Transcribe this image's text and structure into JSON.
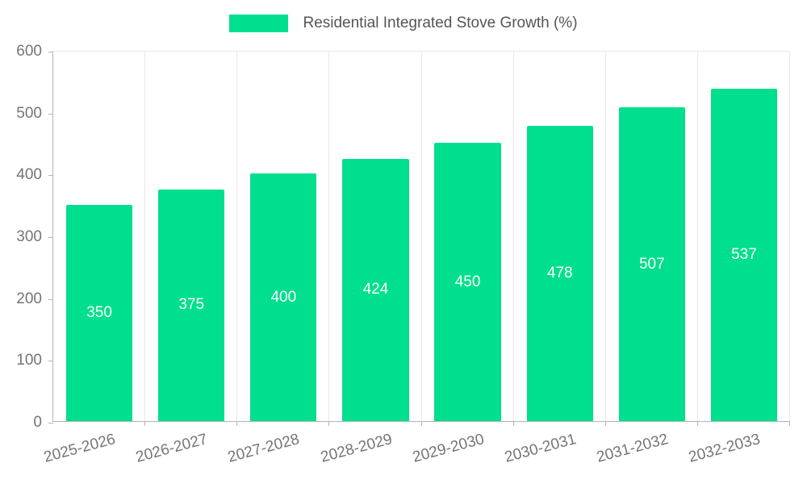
{
  "chart_data": {
    "type": "bar",
    "title": "Residential Integrated Stove Growth (%)",
    "categories": [
      "2025-2026",
      "2026-2027",
      "2027-2028",
      "2028-2029",
      "2029-2030",
      "2030-2031",
      "2031-2032",
      "2032-2033"
    ],
    "values": [
      350,
      375,
      400,
      424,
      450,
      478,
      507,
      537
    ],
    "xlabel": "",
    "ylabel": "",
    "ylim": [
      0,
      600
    ],
    "yticks": [
      0,
      100,
      200,
      300,
      400,
      500,
      600
    ],
    "grid": "vertical",
    "legend_position": "top-center",
    "bar_label_position": "inside-center",
    "colors": {
      "bar": "#00DF8D",
      "bar_label": "#ffffff",
      "axis_text": "#757575",
      "legend_text": "#555555",
      "gridline": "#e7e7e7",
      "axis_line": "#b3b3b3"
    }
  }
}
